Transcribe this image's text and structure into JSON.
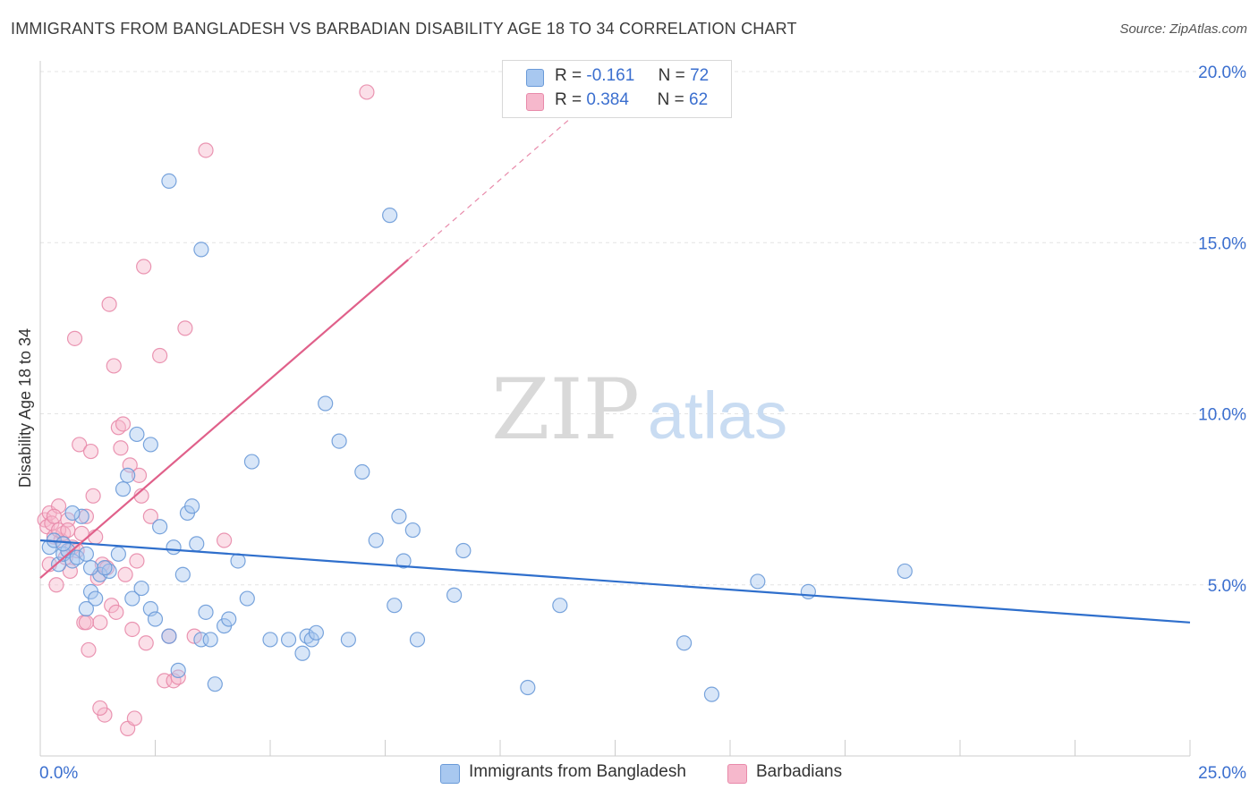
{
  "title": "IMMIGRANTS FROM BANGLADESH VS BARBADIAN DISABILITY AGE 18 TO 34 CORRELATION CHART",
  "source": "Source: ZipAtlas.com",
  "watermark": {
    "zip": "ZIP",
    "atlas": "atlas"
  },
  "colors": {
    "blue_fill": "#a8c8f0",
    "blue_stroke": "#6a9ad8",
    "blue_line": "#2f6fcc",
    "pink_fill": "#f6b8cc",
    "pink_stroke": "#e88aaa",
    "pink_line": "#e0608a",
    "axis_label": "#3b6fcf",
    "grid": "#e4e4e4"
  },
  "legend": {
    "rows": [
      {
        "r_label": "R =",
        "r_value": "-0.161",
        "n_label": "N =",
        "n_value": "72",
        "color": "#a8c8f0",
        "border": "#6a9ad8"
      },
      {
        "r_label": "R =",
        "r_value": "0.384",
        "n_label": "N =",
        "n_value": "62",
        "color": "#f6b8cc",
        "border": "#e88aaa"
      }
    ]
  },
  "chart_data": {
    "type": "scatter",
    "title": "IMMIGRANTS FROM BANGLADESH VS BARBADIAN DISABILITY AGE 18 TO 34 CORRELATION CHART",
    "xlabel": "",
    "ylabel": "Disability Age 18 to 34",
    "xlim": [
      0,
      25
    ],
    "ylim": [
      0,
      20
    ],
    "x_tick_labels": [
      "0.0%",
      "25.0%"
    ],
    "y_tick_labels": [
      "5.0%",
      "10.0%",
      "15.0%",
      "20.0%"
    ],
    "y_ticks": [
      5,
      10,
      15,
      20
    ],
    "grid": true,
    "legend_position": "top-center",
    "series": [
      {
        "name": "Immigrants from Bangladesh",
        "color": "#a8c8f0",
        "trend": {
          "x": [
            0,
            25
          ],
          "y": [
            6.3,
            3.9
          ]
        },
        "points": [
          [
            0.2,
            6.1
          ],
          [
            0.3,
            6.3
          ],
          [
            0.4,
            5.6
          ],
          [
            0.5,
            5.9
          ],
          [
            0.6,
            6.0
          ],
          [
            0.7,
            5.7
          ],
          [
            0.8,
            5.8
          ],
          [
            0.9,
            7.0
          ],
          [
            1.0,
            5.9
          ],
          [
            1.1,
            4.8
          ],
          [
            1.2,
            4.6
          ],
          [
            1.0,
            4.3
          ],
          [
            1.3,
            5.3
          ],
          [
            1.5,
            5.4
          ],
          [
            1.4,
            5.5
          ],
          [
            1.7,
            5.9
          ],
          [
            1.8,
            7.8
          ],
          [
            1.9,
            8.2
          ],
          [
            2.1,
            9.4
          ],
          [
            2.4,
            9.1
          ],
          [
            2.0,
            4.6
          ],
          [
            2.2,
            4.9
          ],
          [
            2.4,
            4.3
          ],
          [
            2.5,
            4.0
          ],
          [
            2.6,
            6.7
          ],
          [
            2.8,
            3.5
          ],
          [
            2.9,
            6.1
          ],
          [
            3.0,
            2.5
          ],
          [
            3.1,
            5.3
          ],
          [
            3.2,
            7.1
          ],
          [
            3.3,
            7.3
          ],
          [
            3.4,
            6.2
          ],
          [
            3.5,
            3.4
          ],
          [
            3.6,
            4.2
          ],
          [
            3.7,
            3.4
          ],
          [
            3.8,
            2.1
          ],
          [
            4.0,
            3.8
          ],
          [
            4.1,
            4.0
          ],
          [
            4.3,
            5.7
          ],
          [
            4.5,
            4.6
          ],
          [
            4.6,
            8.6
          ],
          [
            5.0,
            3.4
          ],
          [
            5.4,
            3.4
          ],
          [
            5.7,
            3.0
          ],
          [
            5.8,
            3.5
          ],
          [
            5.9,
            3.4
          ],
          [
            6.0,
            3.6
          ],
          [
            6.2,
            10.3
          ],
          [
            6.5,
            9.2
          ],
          [
            6.7,
            3.4
          ],
          [
            7.0,
            8.3
          ],
          [
            7.3,
            6.3
          ],
          [
            7.6,
            15.8
          ],
          [
            7.8,
            7.0
          ],
          [
            7.9,
            5.7
          ],
          [
            8.1,
            6.6
          ],
          [
            7.7,
            4.4
          ],
          [
            8.2,
            3.4
          ],
          [
            9.0,
            4.7
          ],
          [
            9.2,
            6.0
          ],
          [
            10.6,
            2.0
          ],
          [
            11.3,
            4.4
          ],
          [
            14.0,
            3.3
          ],
          [
            14.6,
            1.8
          ],
          [
            15.6,
            5.1
          ],
          [
            16.7,
            4.8
          ],
          [
            18.8,
            5.4
          ],
          [
            2.8,
            16.8
          ],
          [
            3.5,
            14.8
          ],
          [
            0.7,
            7.1
          ],
          [
            0.5,
            6.2
          ],
          [
            1.1,
            5.5
          ]
        ]
      },
      {
        "name": "Barbadians",
        "color": "#f6b8cc",
        "trend": {
          "x": [
            0,
            8
          ],
          "y": [
            5.2,
            14.5
          ]
        },
        "trend_extended": {
          "x": [
            8,
            11.5
          ],
          "y": [
            14.5,
            18.6
          ]
        },
        "points": [
          [
            0.1,
            6.9
          ],
          [
            0.15,
            6.7
          ],
          [
            0.2,
            7.1
          ],
          [
            0.25,
            6.8
          ],
          [
            0.3,
            6.4
          ],
          [
            0.35,
            5.0
          ],
          [
            0.4,
            7.3
          ],
          [
            0.45,
            6.3
          ],
          [
            0.5,
            6.5
          ],
          [
            0.55,
            5.8
          ],
          [
            0.6,
            6.9
          ],
          [
            0.65,
            5.4
          ],
          [
            0.7,
            6.1
          ],
          [
            0.75,
            12.2
          ],
          [
            0.8,
            6.0
          ],
          [
            0.85,
            9.1
          ],
          [
            0.9,
            6.5
          ],
          [
            0.95,
            3.9
          ],
          [
            1.0,
            7.0
          ],
          [
            1.05,
            3.1
          ],
          [
            1.1,
            8.9
          ],
          [
            1.15,
            7.6
          ],
          [
            1.2,
            6.4
          ],
          [
            1.25,
            5.2
          ],
          [
            1.3,
            3.9
          ],
          [
            1.35,
            5.6
          ],
          [
            1.4,
            1.2
          ],
          [
            1.45,
            5.5
          ],
          [
            1.5,
            13.2
          ],
          [
            1.55,
            4.4
          ],
          [
            1.6,
            11.4
          ],
          [
            1.65,
            4.2
          ],
          [
            1.7,
            9.6
          ],
          [
            1.75,
            9.0
          ],
          [
            1.8,
            9.7
          ],
          [
            1.85,
            5.3
          ],
          [
            1.9,
            0.8
          ],
          [
            1.95,
            8.5
          ],
          [
            2.0,
            3.7
          ],
          [
            2.05,
            1.1
          ],
          [
            2.1,
            5.7
          ],
          [
            2.15,
            8.2
          ],
          [
            2.2,
            7.6
          ],
          [
            2.25,
            14.3
          ],
          [
            2.3,
            3.3
          ],
          [
            2.4,
            7.0
          ],
          [
            2.6,
            11.7
          ],
          [
            2.7,
            2.2
          ],
          [
            2.8,
            3.5
          ],
          [
            2.9,
            2.2
          ],
          [
            3.0,
            2.3
          ],
          [
            3.15,
            12.5
          ],
          [
            3.35,
            3.5
          ],
          [
            3.6,
            17.7
          ],
          [
            4.0,
            6.3
          ],
          [
            7.1,
            19.4
          ],
          [
            0.2,
            5.6
          ],
          [
            0.3,
            7.0
          ],
          [
            0.4,
            6.6
          ],
          [
            0.6,
            6.6
          ],
          [
            1.3,
            1.4
          ],
          [
            1.0,
            3.9
          ]
        ]
      }
    ]
  }
}
